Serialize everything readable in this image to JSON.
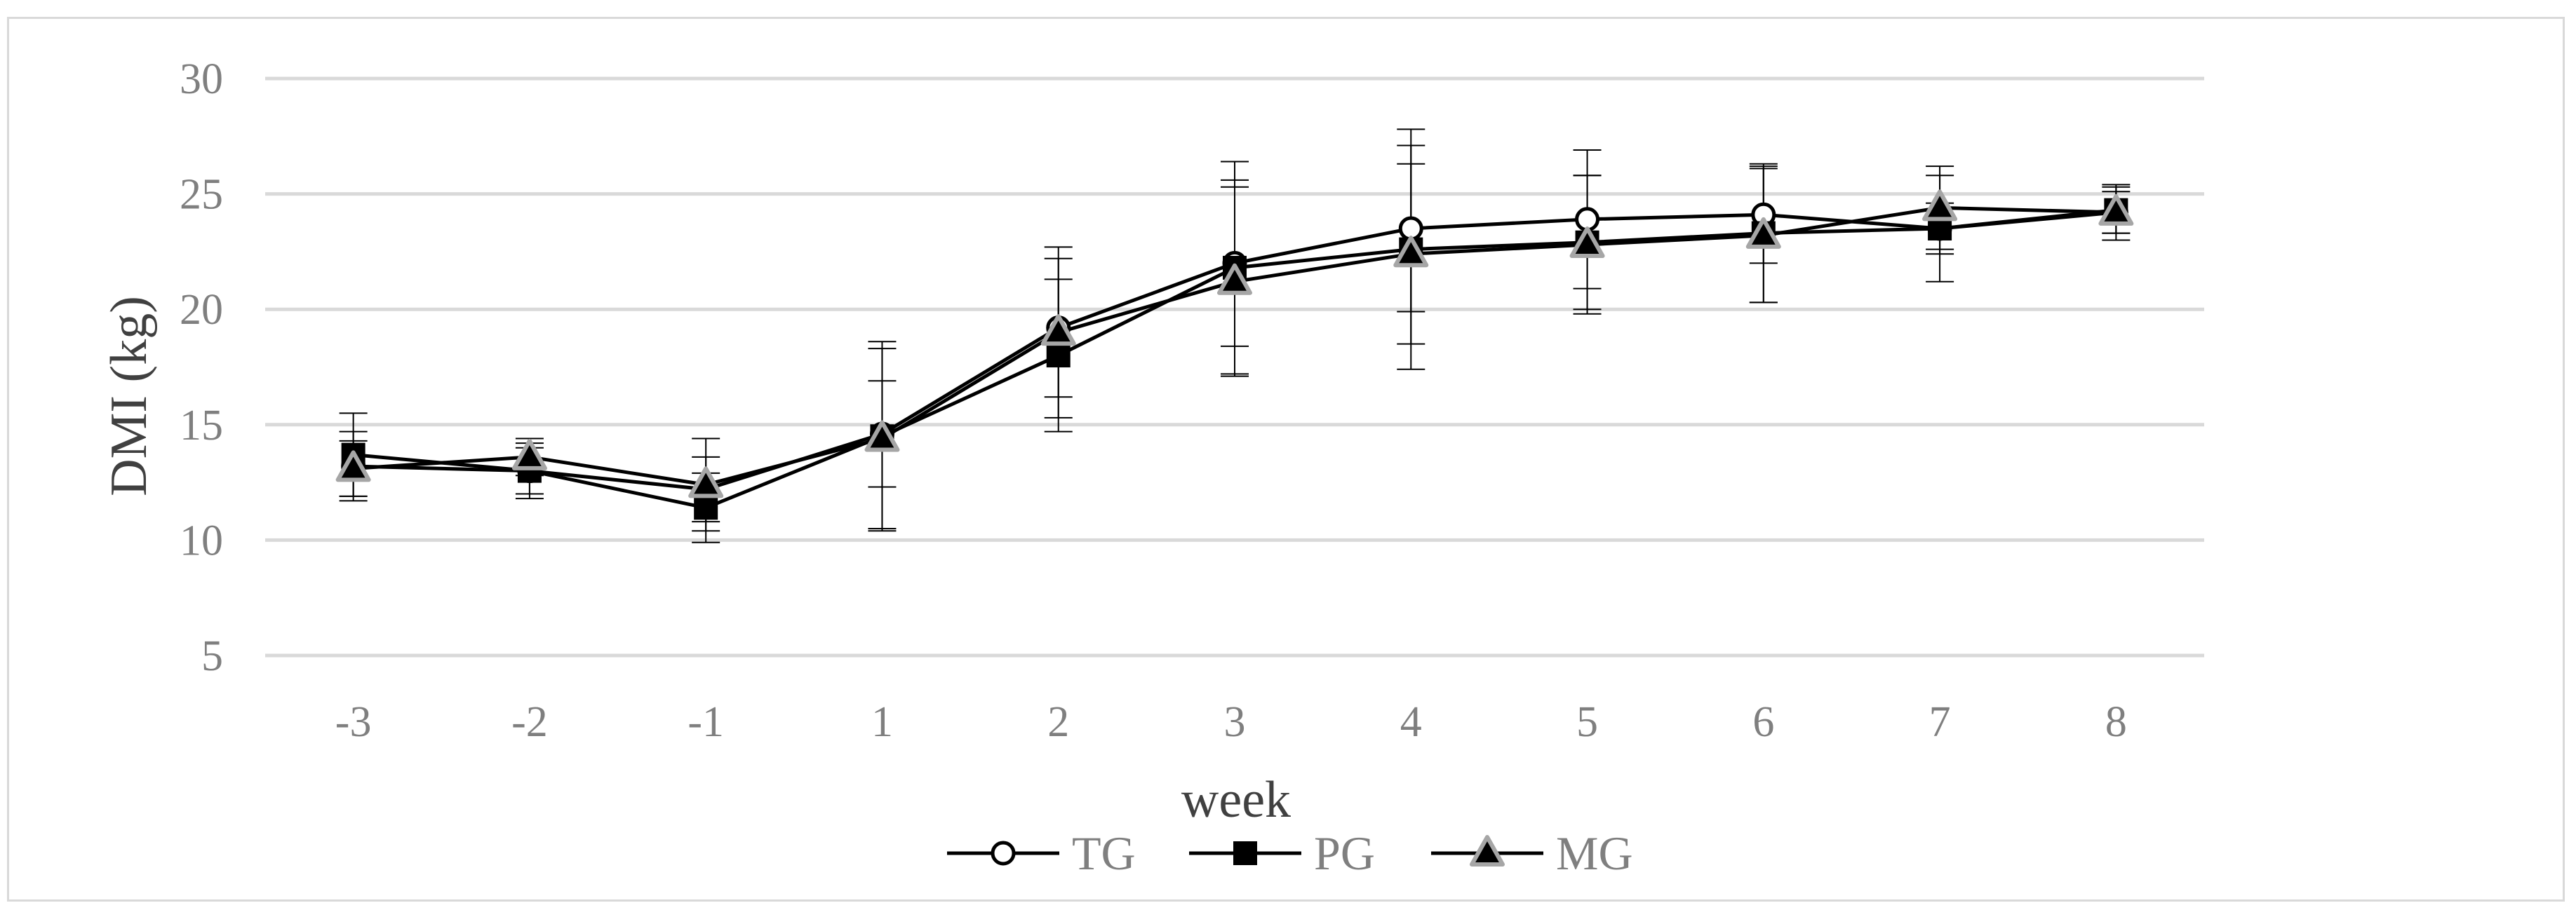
{
  "chart_data": {
    "type": "line",
    "title": "",
    "xlabel": "week",
    "ylabel": "DMI (kg)",
    "categories": [
      "-3",
      "-2",
      "-1",
      "1",
      "2",
      "3",
      "4",
      "5",
      "6",
      "7",
      "8"
    ],
    "ylim": [
      5,
      30
    ],
    "yticks": [
      30,
      25,
      20,
      15,
      10,
      5
    ],
    "grid": "horizontal",
    "legend_position": "bottom",
    "series": [
      {
        "name": "TG",
        "marker": "open-circle",
        "values": [
          13.2,
          13.0,
          12.2,
          14.6,
          19.2,
          22.0,
          23.5,
          23.9,
          24.1,
          23.5,
          24.2
        ],
        "errors": [
          1.5,
          1.0,
          1.4,
          2.3,
          3.0,
          3.6,
          3.6,
          3.0,
          2.1,
          1.1,
          0.9
        ]
      },
      {
        "name": "PG",
        "marker": "filled-square",
        "values": [
          13.7,
          13.0,
          11.4,
          14.5,
          18.0,
          21.8,
          22.6,
          22.9,
          23.3,
          23.5,
          24.3
        ],
        "errors": [
          1.8,
          1.2,
          1.5,
          4.1,
          3.3,
          4.6,
          5.2,
          2.9,
          3.0,
          2.3,
          1.0
        ]
      },
      {
        "name": "MG",
        "marker": "filled-triangle",
        "values": [
          13.1,
          13.6,
          12.4,
          14.4,
          19.0,
          21.2,
          22.4,
          22.8,
          23.2,
          24.4,
          24.2
        ],
        "errors": [
          1.2,
          0.8,
          2.0,
          3.9,
          3.7,
          4.1,
          3.9,
          3.0,
          2.9,
          1.8,
          1.2
        ]
      }
    ],
    "colors": {
      "line": "#000000",
      "gridline": "#d9d9d9",
      "triangle_fill": "#000000",
      "triangle_stroke": "#a6a6a6",
      "tick_text": "#7f7f7f",
      "axis_title_text": "#404040"
    }
  }
}
